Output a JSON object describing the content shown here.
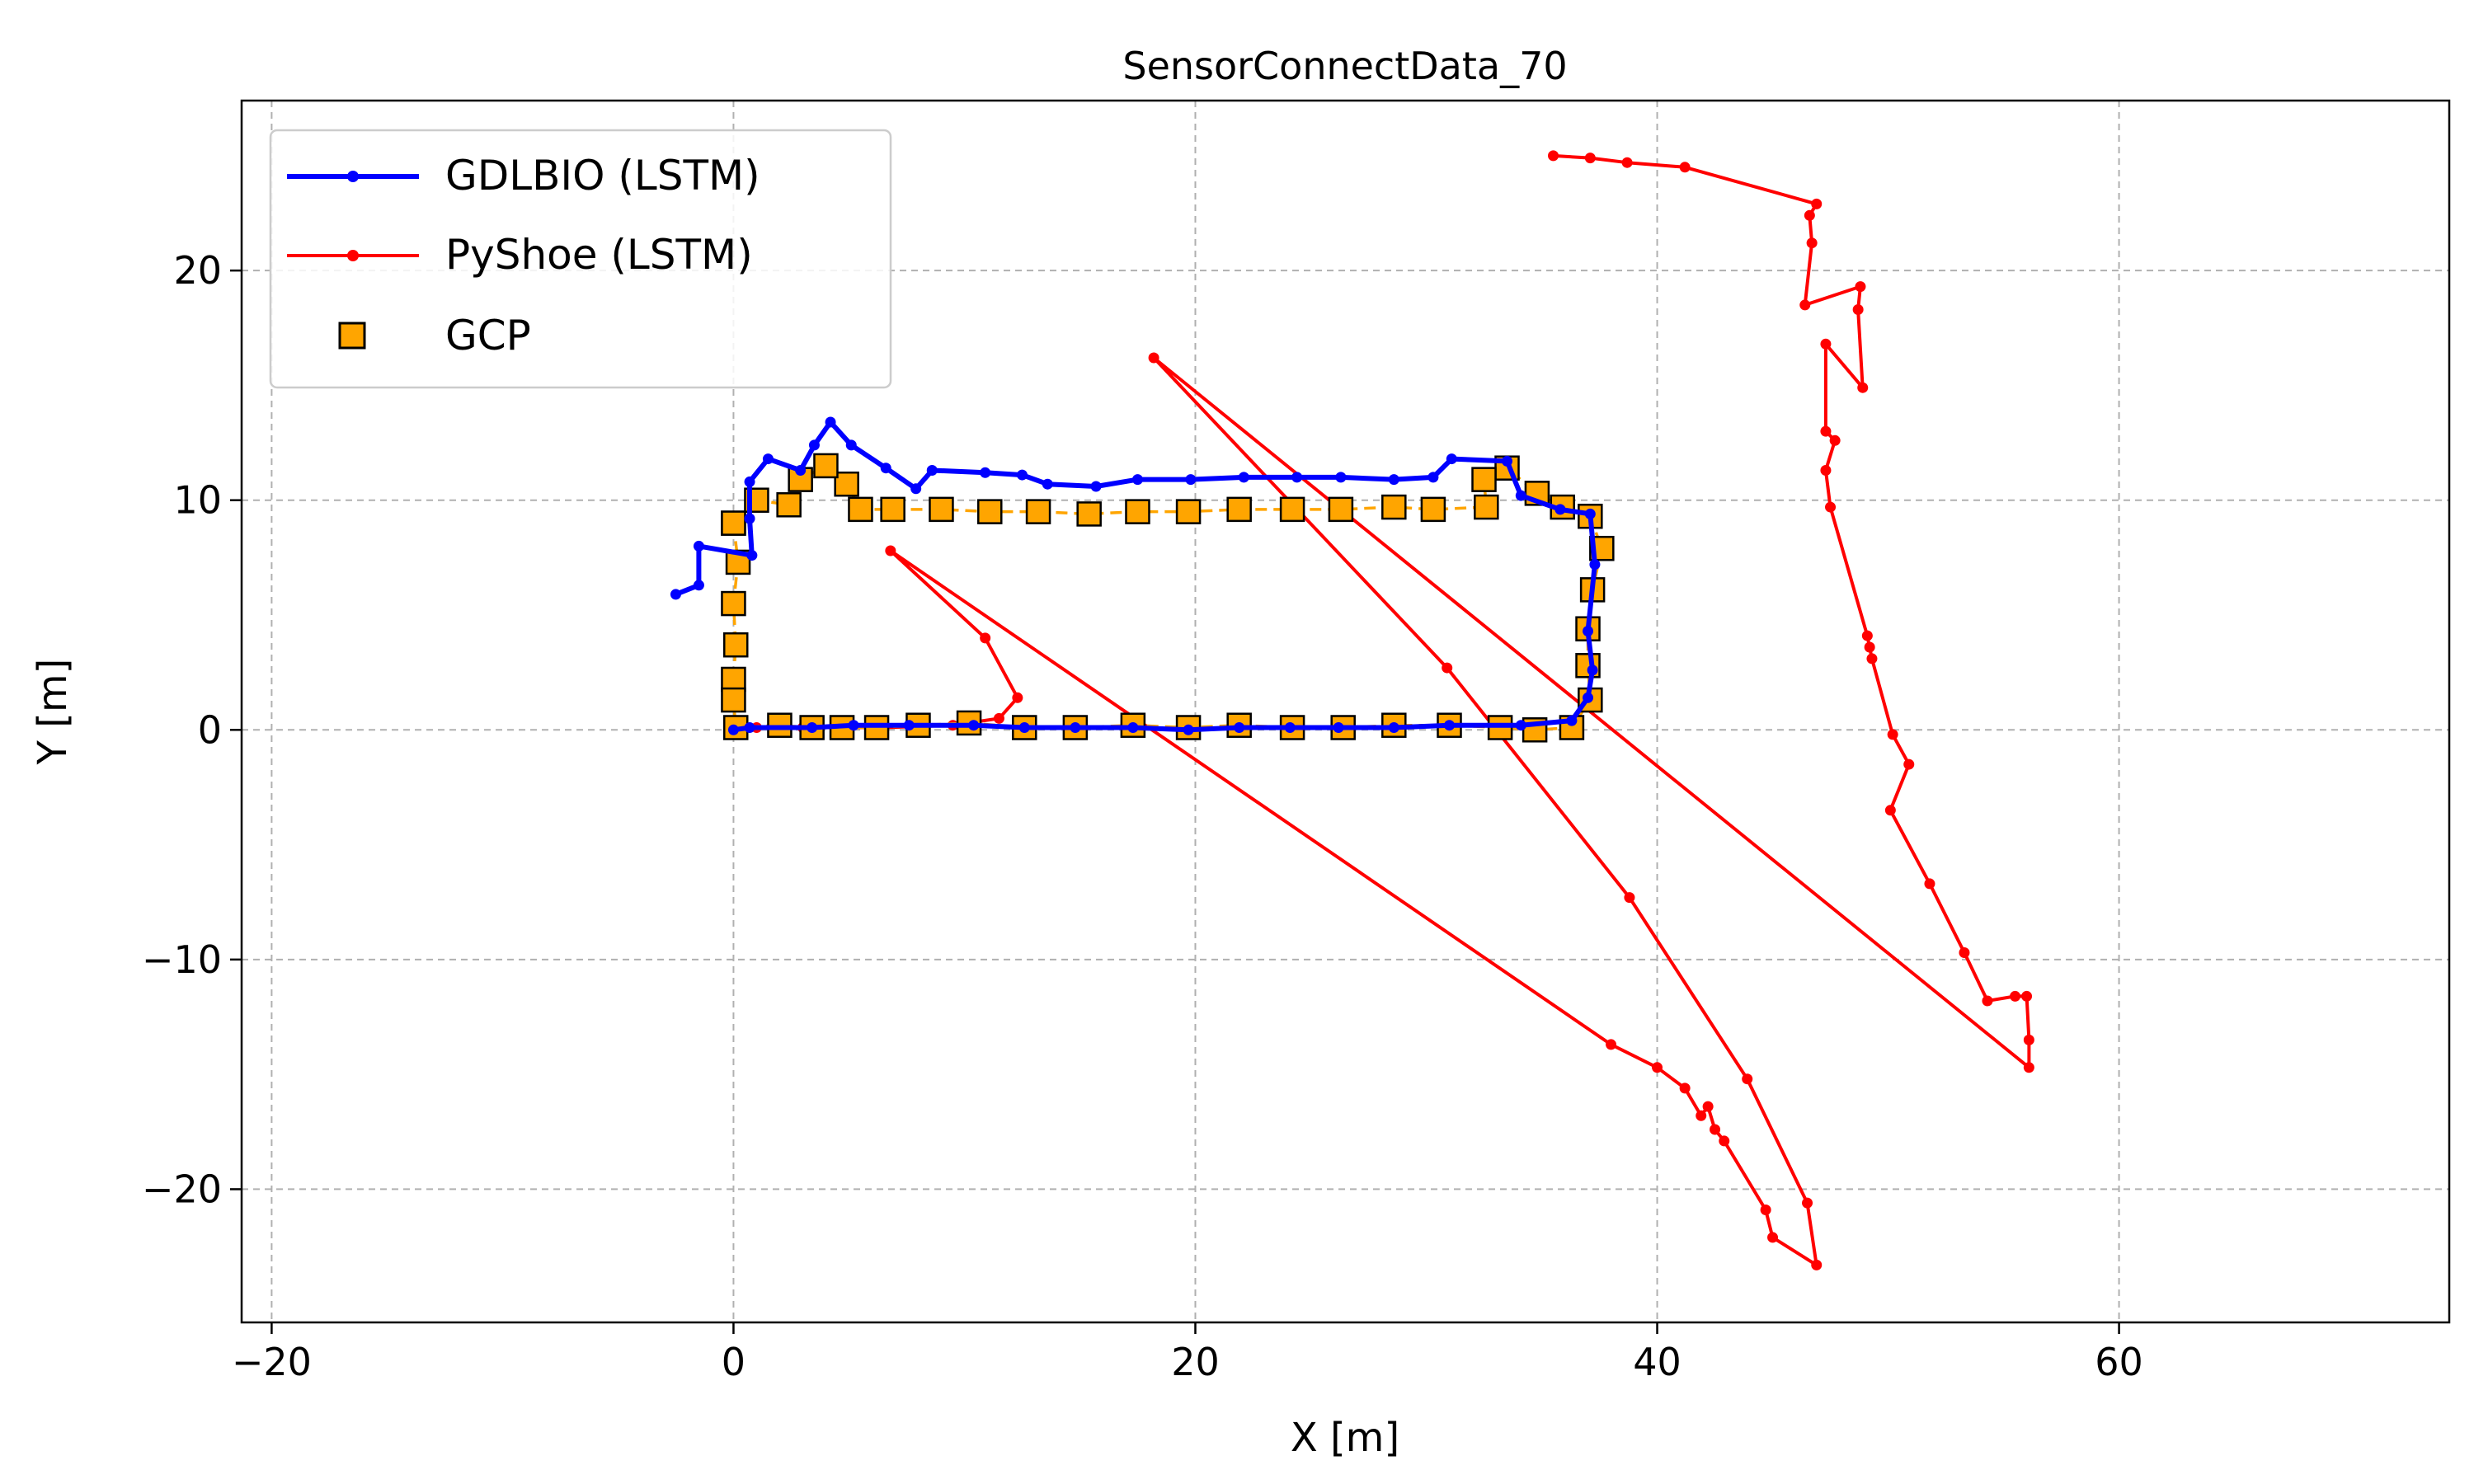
{
  "chart_data": {
    "type": "line",
    "title": "SensorConnectData_70",
    "xlabel": "X [m]",
    "ylabel": "Y [m]",
    "xlim": [
      -21.3,
      74.3
    ],
    "ylim": [
      -25.8,
      27.4
    ],
    "xticks": [
      -20,
      0,
      20,
      40,
      60
    ],
    "yticks": [
      -20,
      -10,
      0,
      10,
      20
    ],
    "xtick_labels": [
      "−20",
      "0",
      "20",
      "40",
      "60"
    ],
    "ytick_labels": [
      "−20",
      "−10",
      "0",
      "10",
      "20"
    ],
    "grid": true,
    "legend_position": "top-left",
    "series": [
      {
        "name": "GDLBIO (LSTM)",
        "color": "#0000ff",
        "style": "line-dots",
        "points": [
          [
            -2.5,
            5.9
          ],
          [
            -1.5,
            6.3
          ],
          [
            -1.5,
            8.0
          ],
          [
            0.8,
            7.6
          ],
          [
            0.7,
            9.2
          ],
          [
            0.7,
            10.8
          ],
          [
            1.5,
            11.8
          ],
          [
            2.9,
            11.3
          ],
          [
            3.5,
            12.4
          ],
          [
            4.2,
            13.4
          ],
          [
            5.1,
            12.4
          ],
          [
            6.6,
            11.4
          ],
          [
            7.9,
            10.5
          ],
          [
            8.6,
            11.3
          ],
          [
            10.9,
            11.2
          ],
          [
            12.5,
            11.1
          ],
          [
            13.6,
            10.7
          ],
          [
            15.7,
            10.6
          ],
          [
            17.5,
            10.9
          ],
          [
            19.8,
            10.9
          ],
          [
            22.1,
            11.0
          ],
          [
            24.4,
            11.0
          ],
          [
            26.3,
            11.0
          ],
          [
            28.6,
            10.9
          ],
          [
            30.3,
            11.0
          ],
          [
            31.1,
            11.8
          ],
          [
            33.5,
            11.7
          ],
          [
            34.1,
            10.2
          ],
          [
            35.8,
            9.6
          ],
          [
            37.1,
            9.4
          ],
          [
            37.3,
            7.2
          ],
          [
            37.0,
            4.3
          ],
          [
            37.2,
            2.6
          ],
          [
            37.0,
            1.4
          ],
          [
            36.3,
            0.4
          ],
          [
            34.1,
            0.2
          ],
          [
            31.0,
            0.2
          ],
          [
            28.6,
            0.1
          ],
          [
            26.2,
            0.1
          ],
          [
            24.1,
            0.1
          ],
          [
            21.9,
            0.1
          ],
          [
            19.7,
            0.0
          ],
          [
            17.3,
            0.1
          ],
          [
            14.8,
            0.1
          ],
          [
            12.6,
            0.1
          ],
          [
            10.4,
            0.2
          ],
          [
            7.6,
            0.2
          ],
          [
            5.2,
            0.2
          ],
          [
            3.4,
            0.1
          ],
          [
            0.7,
            0.1
          ],
          [
            0.0,
            0.0
          ]
        ]
      },
      {
        "name": "PyShoe (LSTM)",
        "color": "#ff0000",
        "style": "line-dots",
        "points": [
          [
            0.0,
            0.0
          ],
          [
            1.0,
            0.1
          ],
          [
            3.0,
            0.1
          ],
          [
            6.5,
            0.1
          ],
          [
            9.5,
            0.2
          ],
          [
            11.5,
            0.5
          ],
          [
            12.3,
            1.4
          ],
          [
            10.9,
            4.0
          ],
          [
            6.8,
            7.8
          ],
          [
            38.0,
            -13.7
          ],
          [
            40.0,
            -14.7
          ],
          [
            41.2,
            -15.6
          ],
          [
            41.9,
            -16.8
          ],
          [
            42.2,
            -16.4
          ],
          [
            42.5,
            -17.4
          ],
          [
            42.9,
            -17.9
          ],
          [
            44.7,
            -20.9
          ],
          [
            45.0,
            -22.1
          ],
          [
            46.9,
            -23.3
          ],
          [
            46.5,
            -20.6
          ],
          [
            43.9,
            -15.2
          ],
          [
            38.8,
            -7.3
          ],
          [
            30.9,
            2.7
          ],
          [
            18.2,
            16.2
          ],
          [
            56.1,
            -14.7
          ],
          [
            56.1,
            -13.5
          ],
          [
            56.0,
            -11.6
          ],
          [
            55.5,
            -11.6
          ],
          [
            54.3,
            -11.8
          ],
          [
            53.3,
            -9.7
          ],
          [
            51.8,
            -6.7
          ],
          [
            50.1,
            -3.5
          ],
          [
            50.9,
            -1.5
          ],
          [
            50.2,
            -0.2
          ],
          [
            49.3,
            3.1
          ],
          [
            49.2,
            3.6
          ],
          [
            49.1,
            4.1
          ],
          [
            47.5,
            9.7
          ],
          [
            47.3,
            11.3
          ],
          [
            47.7,
            12.6
          ],
          [
            47.3,
            13.0
          ],
          [
            47.3,
            16.8
          ],
          [
            48.9,
            14.9
          ],
          [
            48.7,
            18.3
          ],
          [
            48.8,
            19.3
          ],
          [
            46.4,
            18.5
          ],
          [
            46.7,
            21.2
          ],
          [
            46.6,
            22.4
          ],
          [
            46.9,
            22.9
          ],
          [
            41.2,
            24.5
          ],
          [
            38.7,
            24.7
          ],
          [
            37.1,
            24.9
          ],
          [
            35.5,
            25.0
          ]
        ]
      },
      {
        "name": "GCP",
        "color": "#ffa500",
        "style": "squares-dashed",
        "points": [
          [
            0.0,
            9.0
          ],
          [
            0.2,
            7.3
          ],
          [
            0.0,
            5.5
          ],
          [
            0.1,
            3.7
          ],
          [
            0.0,
            2.2
          ],
          [
            0.0,
            1.3
          ],
          [
            0.1,
            0.1
          ],
          [
            2.0,
            0.2
          ],
          [
            3.4,
            0.1
          ],
          [
            4.7,
            0.1
          ],
          [
            6.2,
            0.1
          ],
          [
            8.0,
            0.2
          ],
          [
            10.2,
            0.3
          ],
          [
            12.6,
            0.1
          ],
          [
            14.8,
            0.1
          ],
          [
            17.3,
            0.2
          ],
          [
            19.7,
            0.1
          ],
          [
            21.9,
            0.2
          ],
          [
            24.2,
            0.1
          ],
          [
            26.4,
            0.1
          ],
          [
            28.6,
            0.2
          ],
          [
            31.0,
            0.2
          ],
          [
            33.2,
            0.1
          ],
          [
            34.7,
            0.0
          ],
          [
            36.3,
            0.1
          ],
          [
            37.1,
            1.3
          ],
          [
            37.0,
            2.8
          ],
          [
            37.0,
            4.4
          ],
          [
            37.2,
            6.1
          ],
          [
            37.6,
            7.9
          ],
          [
            37.1,
            9.3
          ],
          [
            35.9,
            9.7
          ],
          [
            34.8,
            10.3
          ],
          [
            33.5,
            11.4
          ],
          [
            32.5,
            10.9
          ],
          [
            32.6,
            9.7
          ],
          [
            30.3,
            9.6
          ],
          [
            28.6,
            9.7
          ],
          [
            26.3,
            9.6
          ],
          [
            24.2,
            9.6
          ],
          [
            21.9,
            9.6
          ],
          [
            19.7,
            9.5
          ],
          [
            17.5,
            9.5
          ],
          [
            15.4,
            9.4
          ],
          [
            13.2,
            9.5
          ],
          [
            11.1,
            9.5
          ],
          [
            9.0,
            9.6
          ],
          [
            6.9,
            9.6
          ],
          [
            5.5,
            9.6
          ],
          [
            4.9,
            10.7
          ],
          [
            4.0,
            11.5
          ],
          [
            2.9,
            10.9
          ],
          [
            2.4,
            9.8
          ],
          [
            1.0,
            10.0
          ],
          [
            0.0,
            9.0
          ]
        ]
      }
    ]
  }
}
